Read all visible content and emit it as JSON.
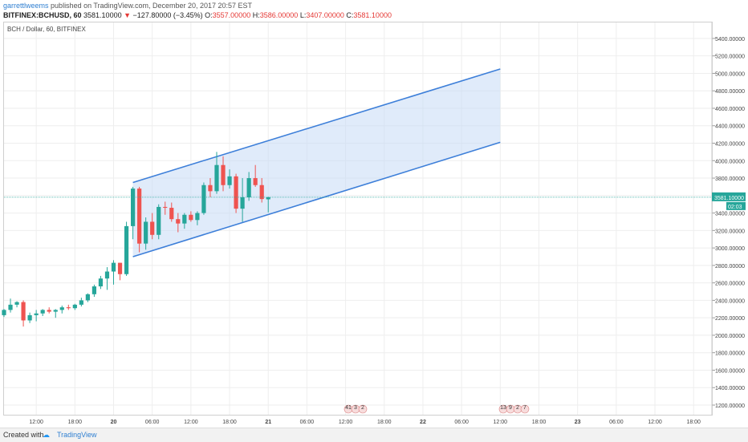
{
  "header": {
    "author": "garrettlweems",
    "published": "published on TradingView.com, December 20, 2017 20:57 EST",
    "symbol": "BITFINEX:BCHUSD, 60",
    "last_price": "3581.10000",
    "change_arrow": "▼",
    "change": "−127.80000 (−3.45%)",
    "open_label": "O:",
    "open": "3557.00000",
    "high_label": "H:",
    "high": "3586.00000",
    "low_label": "L:",
    "low": "3407.00000",
    "close_label": "C:",
    "close": "3581.10000"
  },
  "chart_title": "BCH / Dollar, 60, BITFINEX",
  "price_tag": {
    "value": "3581.10000",
    "countdown": "02:03"
  },
  "event_badges": [
    {
      "items": [
        "41",
        "3",
        "2"
      ]
    },
    {
      "items": [
        "13",
        "9",
        "2",
        "7"
      ]
    }
  ],
  "footer": {
    "created": "Created with",
    "brand": "TradingView"
  },
  "colors": {
    "up": "#26a69a",
    "down": "#ef5350",
    "channel": "#3d7fd9",
    "channel_fill": "#c7dbf6",
    "last_price_line": "#26a69a",
    "grid": "#eeeeee"
  },
  "chart_data": {
    "type": "candlestick",
    "title": "BCH / Dollar, 60, BITFINEX",
    "x_tick_labels": [
      "12:00",
      "18:00",
      "20",
      "06:00",
      "12:00",
      "18:00",
      "21",
      "06:00",
      "12:00",
      "18:00",
      "22",
      "06:00",
      "12:00",
      "18:00",
      "23",
      "06:00",
      "12:00",
      "18:00"
    ],
    "y_tick_labels": [
      "1200.00000",
      "1400.00000",
      "1600.00000",
      "1800.00000",
      "2000.00000",
      "2200.00000",
      "2400.00000",
      "2600.00000",
      "2800.00000",
      "3000.00000",
      "3200.00000",
      "3400.00000",
      "3600.00000",
      "3800.00000",
      "4000.00000",
      "4200.00000",
      "4400.00000",
      "4600.00000",
      "4800.00000",
      "5000.00000",
      "5200.00000",
      "5400.00000"
    ],
    "ylim": [
      1120,
      5500
    ],
    "grid": true,
    "last_price": 3581.1,
    "candles": [
      {
        "t": 0,
        "o": 2230,
        "h": 2300,
        "l": 2210,
        "c": 2290
      },
      {
        "t": 1,
        "o": 2290,
        "h": 2420,
        "l": 2260,
        "c": 2350
      },
      {
        "t": 2,
        "o": 2350,
        "h": 2390,
        "l": 2320,
        "c": 2380
      },
      {
        "t": 3,
        "o": 2380,
        "h": 2400,
        "l": 2100,
        "c": 2170
      },
      {
        "t": 4,
        "o": 2170,
        "h": 2260,
        "l": 2140,
        "c": 2230
      },
      {
        "t": 5,
        "o": 2230,
        "h": 2290,
        "l": 2160,
        "c": 2250
      },
      {
        "t": 6,
        "o": 2250,
        "h": 2300,
        "l": 2220,
        "c": 2290
      },
      {
        "t": 7,
        "o": 2290,
        "h": 2320,
        "l": 2250,
        "c": 2270
      },
      {
        "t": 8,
        "o": 2270,
        "h": 2300,
        "l": 2200,
        "c": 2290
      },
      {
        "t": 9,
        "o": 2290,
        "h": 2340,
        "l": 2250,
        "c": 2320
      },
      {
        "t": 10,
        "o": 2320,
        "h": 2350,
        "l": 2290,
        "c": 2310
      },
      {
        "t": 11,
        "o": 2310,
        "h": 2360,
        "l": 2290,
        "c": 2350
      },
      {
        "t": 12,
        "o": 2350,
        "h": 2430,
        "l": 2330,
        "c": 2400
      },
      {
        "t": 13,
        "o": 2400,
        "h": 2480,
        "l": 2380,
        "c": 2470
      },
      {
        "t": 14,
        "o": 2470,
        "h": 2580,
        "l": 2440,
        "c": 2560
      },
      {
        "t": 15,
        "o": 2560,
        "h": 2680,
        "l": 2530,
        "c": 2650
      },
      {
        "t": 16,
        "o": 2650,
        "h": 2780,
        "l": 2520,
        "c": 2730
      },
      {
        "t": 17,
        "o": 2730,
        "h": 2860,
        "l": 2580,
        "c": 2830
      },
      {
        "t": 18,
        "o": 2830,
        "h": 2830,
        "l": 2630,
        "c": 2700
      },
      {
        "t": 19,
        "o": 2700,
        "h": 3300,
        "l": 2680,
        "c": 3250
      },
      {
        "t": 20,
        "o": 3250,
        "h": 3700,
        "l": 3100,
        "c": 3680
      },
      {
        "t": 21,
        "o": 3680,
        "h": 3700,
        "l": 2950,
        "c": 3050
      },
      {
        "t": 22,
        "o": 3050,
        "h": 3350,
        "l": 2980,
        "c": 3300
      },
      {
        "t": 23,
        "o": 3300,
        "h": 3400,
        "l": 3100,
        "c": 3150
      },
      {
        "t": 24,
        "o": 3150,
        "h": 3500,
        "l": 3100,
        "c": 3470
      },
      {
        "t": 25,
        "o": 3470,
        "h": 3530,
        "l": 3380,
        "c": 3460
      },
      {
        "t": 26,
        "o": 3460,
        "h": 3520,
        "l": 3300,
        "c": 3330
      },
      {
        "t": 27,
        "o": 3330,
        "h": 3400,
        "l": 3180,
        "c": 3280
      },
      {
        "t": 28,
        "o": 3280,
        "h": 3400,
        "l": 3220,
        "c": 3380
      },
      {
        "t": 29,
        "o": 3380,
        "h": 3420,
        "l": 3300,
        "c": 3320
      },
      {
        "t": 30,
        "o": 3320,
        "h": 3420,
        "l": 3260,
        "c": 3400
      },
      {
        "t": 31,
        "o": 3400,
        "h": 3750,
        "l": 3380,
        "c": 3720
      },
      {
        "t": 32,
        "o": 3720,
        "h": 3800,
        "l": 3580,
        "c": 3650
      },
      {
        "t": 33,
        "o": 3650,
        "h": 4100,
        "l": 3620,
        "c": 3950
      },
      {
        "t": 34,
        "o": 3950,
        "h": 4050,
        "l": 3650,
        "c": 3720
      },
      {
        "t": 35,
        "o": 3720,
        "h": 3900,
        "l": 3680,
        "c": 3820
      },
      {
        "t": 36,
        "o": 3820,
        "h": 3850,
        "l": 3400,
        "c": 3450
      },
      {
        "t": 37,
        "o": 3450,
        "h": 3800,
        "l": 3300,
        "c": 3580
      },
      {
        "t": 38,
        "o": 3580,
        "h": 3870,
        "l": 3540,
        "c": 3800
      },
      {
        "t": 39,
        "o": 3800,
        "h": 3950,
        "l": 3700,
        "c": 3720
      },
      {
        "t": 40,
        "o": 3720,
        "h": 3800,
        "l": 3520,
        "c": 3560
      },
      {
        "t": 41,
        "o": 3557,
        "h": 3586,
        "l": 3407,
        "c": 3581.1
      }
    ],
    "channel": {
      "upper": [
        {
          "t": 20,
          "y": 3750
        },
        {
          "t": 77,
          "y": 5050
        }
      ],
      "lower": [
        {
          "t": 20,
          "y": 2900
        },
        {
          "t": 77,
          "y": 4210
        }
      ]
    }
  }
}
